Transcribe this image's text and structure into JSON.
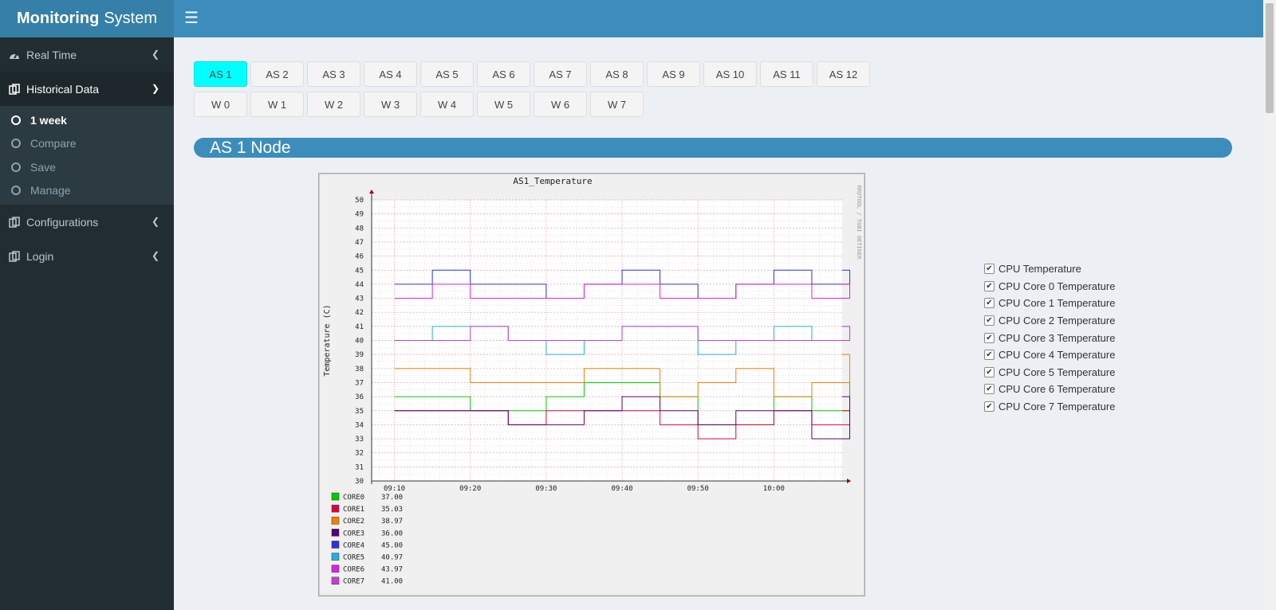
{
  "header": {
    "logo_bold": "Monitoring",
    "logo_rest": "System"
  },
  "sidebar": {
    "items": [
      {
        "label": "Real Time",
        "icon": "dashboard-icon"
      },
      {
        "label": "Historical Data",
        "icon": "copy-icon"
      },
      {
        "label": "Configurations",
        "icon": "copy-icon"
      },
      {
        "label": "Login",
        "icon": "copy-icon"
      }
    ],
    "submenu": [
      {
        "label": "1 week"
      },
      {
        "label": "Compare"
      },
      {
        "label": "Save"
      },
      {
        "label": "Manage"
      }
    ]
  },
  "as_buttons": [
    "AS 1",
    "AS 2",
    "AS 3",
    "AS 4",
    "AS 5",
    "AS 6",
    "AS 7",
    "AS 8",
    "AS 9",
    "AS 10",
    "AS 11",
    "AS 12"
  ],
  "w_buttons": [
    "W 0",
    "W 1",
    "W 2",
    "W 3",
    "W 4",
    "W 5",
    "W 6",
    "W 7"
  ],
  "node_title": "AS 1 Node",
  "checkboxes": [
    "CPU Temperature",
    "CPU Core 0 Temperature",
    "CPU Core 1 Temperature",
    "CPU Core 2 Temperature",
    "CPU Core 3 Temperature",
    "CPU Core 4 Temperature",
    "CPU Core 5 Temperature",
    "CPU Core 6 Temperature",
    "CPU Core 7 Temperature"
  ],
  "chart_data": {
    "type": "line",
    "title": "AS1_Temperature",
    "ylabel": "Temperature (C)",
    "xlabel": "",
    "side_text": "RRDTOOL / TOBI OETIKER",
    "ylim": [
      30,
      50
    ],
    "yticks": [
      30,
      31,
      32,
      33,
      34,
      35,
      36,
      37,
      38,
      39,
      40,
      41,
      42,
      43,
      44,
      45,
      46,
      47,
      48,
      49,
      50
    ],
    "xticks": [
      "09:10",
      "09:20",
      "09:30",
      "09:40",
      "09:50",
      "10:00"
    ],
    "x_minutes": [
      0,
      5,
      10,
      15,
      20,
      25,
      30,
      35,
      40,
      45,
      50,
      55,
      60
    ],
    "series": [
      {
        "name": "CORE0",
        "color": "#00cc00",
        "last": "37.00",
        "values": [
          36,
          36,
          35,
          35,
          36,
          37,
          37,
          36,
          34,
          34,
          36,
          35,
          37
        ]
      },
      {
        "name": "CORE1",
        "color": "#e0003c",
        "last": "35.03",
        "values": [
          35,
          35,
          35,
          34,
          35,
          35,
          35,
          34,
          33,
          34,
          35,
          34,
          35
        ]
      },
      {
        "name": "CORE2",
        "color": "#f08000",
        "last": "38.97",
        "values": [
          38,
          38,
          37,
          37,
          37,
          38,
          38,
          36,
          37,
          38,
          36,
          37,
          39
        ]
      },
      {
        "name": "CORE3",
        "color": "#5a0070",
        "last": "36.00",
        "values": [
          35,
          35,
          35,
          34,
          34,
          35,
          36,
          35,
          34,
          35,
          35,
          33,
          36
        ]
      },
      {
        "name": "CORE4",
        "color": "#3030e0",
        "last": "45.00",
        "values": [
          44,
          45,
          44,
          44,
          43,
          44,
          45,
          44,
          43,
          44,
          45,
          44,
          45
        ]
      },
      {
        "name": "CORE5",
        "color": "#20b0e0",
        "last": "40.97",
        "values": [
          40,
          41,
          41,
          40,
          39,
          40,
          41,
          41,
          39,
          40,
          41,
          40,
          41
        ]
      },
      {
        "name": "CORE6",
        "color": "#e020e0",
        "last": "43.97",
        "values": [
          43,
          44,
          43,
          43,
          43,
          44,
          44,
          43,
          43,
          44,
          44,
          43,
          44
        ]
      },
      {
        "name": "CORE7",
        "color": "#c040d0",
        "last": "41.00",
        "values": [
          40,
          40,
          41,
          40,
          40,
          40,
          41,
          41,
          40,
          40,
          40,
          40,
          41
        ]
      }
    ]
  },
  "colors": {
    "accent": "#3c8dbc",
    "sidebar": "#222d32",
    "active_button": "#00ffff"
  }
}
